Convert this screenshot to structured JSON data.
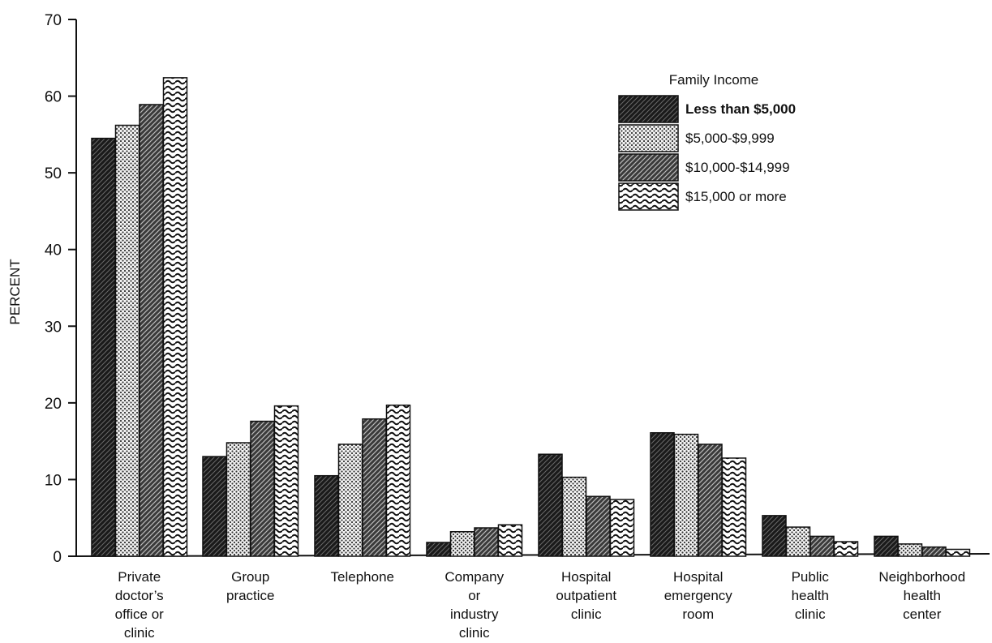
{
  "chart_data": {
    "type": "bar",
    "title": "",
    "xlabel": "",
    "ylabel": "PERCENT",
    "ylim": [
      0,
      70
    ],
    "yticks": [
      0,
      10,
      20,
      30,
      40,
      50,
      60,
      70
    ],
    "grid": false,
    "legend_position": "top-right",
    "legend_title": "Family Income",
    "categories": [
      [
        "Private",
        "doctor’s",
        "office or",
        "clinic"
      ],
      [
        "Group",
        "practice"
      ],
      [
        "Telephone"
      ],
      [
        "Company",
        "or",
        "industry",
        "clinic"
      ],
      [
        "Hospital",
        "outpatient",
        "clinic"
      ],
      [
        "Hospital",
        "emergency",
        "room"
      ],
      [
        "Public",
        "health",
        "clinic"
      ],
      [
        "Neighborhood",
        "health",
        "center"
      ]
    ],
    "series": [
      {
        "name": "Less than $5,000",
        "pattern": "dark-hatch",
        "values": [
          54.5,
          13.0,
          10.5,
          1.8,
          13.3,
          16.1,
          5.3,
          2.6
        ]
      },
      {
        "name": "$5,000-$9,999",
        "pattern": "light-dots",
        "values": [
          56.2,
          14.8,
          14.6,
          3.2,
          10.3,
          15.9,
          3.8,
          1.6
        ]
      },
      {
        "name": "$10,000-$14,999",
        "pattern": "medium-hatch",
        "values": [
          58.9,
          17.6,
          17.9,
          3.7,
          7.8,
          14.6,
          2.6,
          1.2
        ]
      },
      {
        "name": "$15,000 or more",
        "pattern": "waves",
        "values": [
          62.4,
          19.6,
          19.7,
          4.1,
          7.4,
          12.8,
          1.9,
          0.9
        ]
      }
    ],
    "colors": {
      "ink": "#111111",
      "background": "#ffffff"
    }
  }
}
